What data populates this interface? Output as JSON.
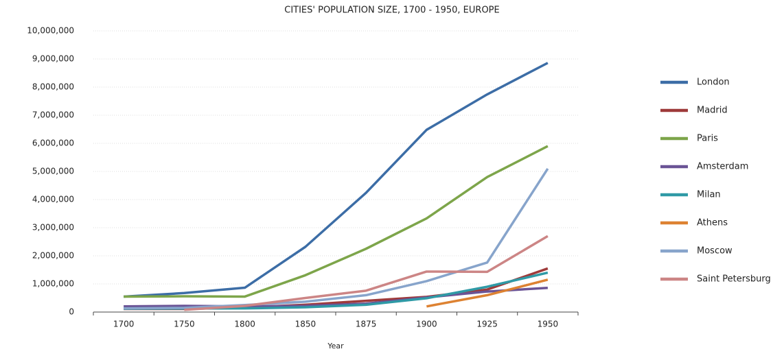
{
  "chart_data": {
    "type": "line",
    "title": "CITIES' POPULATION SIZE, 1700 - 1950, EUROPE",
    "x_label": "Year",
    "categories": [
      "1700",
      "1750",
      "1800",
      "1850",
      "1875",
      "1900",
      "1925",
      "1950"
    ],
    "series": [
      {
        "name": "London",
        "color": "#3c6da6",
        "values": [
          550000,
          676000,
          865000,
          2320000,
          4240000,
          6480000,
          7740000,
          8860000
        ]
      },
      {
        "name": "Madrid",
        "color": "#9e3a3a",
        "values": [
          110000,
          110000,
          160000,
          260000,
          400000,
          540000,
          800000,
          1550000
        ]
      },
      {
        "name": "Paris",
        "color": "#7da54a",
        "values": [
          550000,
          560000,
          550000,
          1310000,
          2250000,
          3330000,
          4800000,
          5900000
        ]
      },
      {
        "name": "Amsterdam",
        "color": "#6a5395",
        "values": [
          200000,
          220000,
          200000,
          220000,
          300000,
          520000,
          730000,
          860000
        ]
      },
      {
        "name": "Milan",
        "color": "#2f9aa6",
        "values": [
          120000,
          125000,
          130000,
          170000,
          260000,
          490000,
          900000,
          1400000
        ]
      },
      {
        "name": "Athens",
        "color": "#dd8232",
        "values": [
          null,
          null,
          null,
          null,
          null,
          200000,
          600000,
          1150000
        ]
      },
      {
        "name": "Moscow",
        "color": "#87a4cb",
        "values": [
          130000,
          150000,
          250000,
          370000,
          600000,
          1100000,
          1760000,
          5100000
        ]
      },
      {
        "name": "Saint Petersburg",
        "color": "#cc8585",
        "values": [
          null,
          80000,
          220000,
          500000,
          760000,
          1440000,
          1430000,
          2700000
        ]
      }
    ],
    "ylim": [
      0,
      10000000
    ],
    "yticks": [
      0,
      {
        "value": 1000000,
        "label": "1,000,000"
      },
      {
        "value": 2000000,
        "label": "2,000,000"
      },
      {
        "value": 3000000,
        "label": "3,000,000"
      },
      {
        "value": 4000000,
        "label": "4,000,000"
      },
      {
        "value": 5000000,
        "label": "5,000,000"
      },
      {
        "value": 6000000,
        "label": "6,000,000"
      },
      {
        "value": 7000000,
        "label": "7,000,000"
      },
      {
        "value": 8000000,
        "label": "8,000,000"
      },
      {
        "value": 9000000,
        "label": "9,000,000"
      },
      {
        "value": 10000000,
        "label": "10,000,000"
      }
    ],
    "grid": true,
    "legend": "right"
  }
}
